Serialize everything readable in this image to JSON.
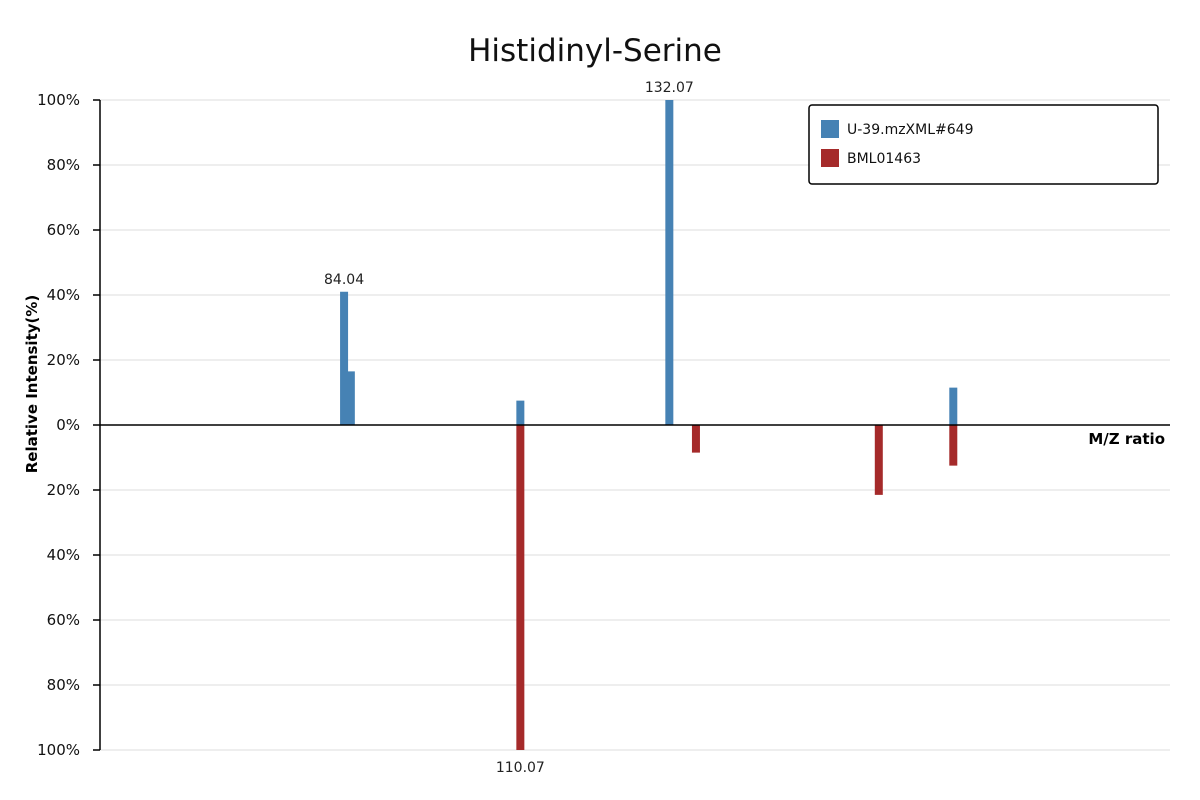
{
  "chart_data": {
    "type": "bar",
    "title": "Histidinyl-Serine",
    "xlabel": "M/Z ratio",
    "ylabel": "Relative Intensity(%)",
    "xlim": [
      48,
      206
    ],
    "ylim": [
      -100,
      100
    ],
    "y_ticks": [
      100,
      80,
      60,
      40,
      20,
      0,
      -20,
      -40,
      -60,
      -80,
      -100
    ],
    "y_tick_labels": [
      "100%",
      "80%",
      "60%",
      "40%",
      "20%",
      "0%",
      "20%",
      "40%",
      "60%",
      "80%",
      "100%"
    ],
    "grid": true,
    "legend_position": "top-right",
    "series": [
      {
        "name": "U-39.mzXML#649",
        "color": "#4682b4",
        "direction": "up",
        "x": [
          84.04,
          85.04,
          110.07,
          132.07,
          174.0
        ],
        "values": [
          41,
          16.5,
          7.5,
          100,
          11.5
        ]
      },
      {
        "name": "BML01463",
        "color": "#a52a2a",
        "direction": "down",
        "x": [
          110.07,
          136.0,
          163.0,
          174.0
        ],
        "values": [
          100,
          8.5,
          21.5,
          12.5
        ]
      }
    ],
    "peak_labels": [
      {
        "text": "84.04",
        "x": 84.04,
        "series": 0
      },
      {
        "text": "132.07",
        "x": 132.07,
        "series": 0
      },
      {
        "text": "110.07",
        "x": 110.07,
        "series": 1
      }
    ]
  }
}
